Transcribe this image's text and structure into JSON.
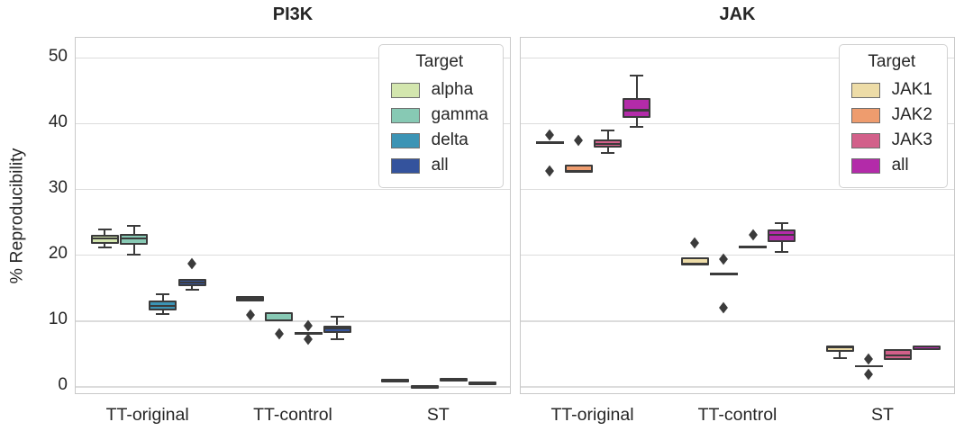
{
  "chart_data": {
    "type": "grouped_boxplot",
    "ylabel": "% Reproducibility",
    "ylim": [
      -1.3,
      53.0
    ],
    "yticks": [
      0,
      10,
      20,
      30,
      40,
      50
    ],
    "categories": [
      "TT-original",
      "TT-control",
      "ST"
    ],
    "grid": "horizontal",
    "legend_position": "upper right",
    "panels": [
      {
        "title": "PI3K",
        "legend_title": "Target",
        "series": [
          {
            "name": "alpha",
            "color": "#d3e6ae"
          },
          {
            "name": "gamma",
            "color": "#87c9b4"
          },
          {
            "name": "delta",
            "color": "#3c94b5"
          },
          {
            "name": "all",
            "color": "#34539d"
          }
        ],
        "groups": [
          {
            "category": "TT-original",
            "boxes": [
              {
                "series": "alpha",
                "whislo": 21.1,
                "q1": 21.7,
                "med": 22.5,
                "q3": 23.1,
                "whishi": 23.8,
                "outliers": []
              },
              {
                "series": "gamma",
                "whislo": 20.1,
                "q1": 21.5,
                "med": 22.5,
                "q3": 23.2,
                "whishi": 24.4,
                "outliers": []
              },
              {
                "series": "delta",
                "whislo": 11.0,
                "q1": 11.6,
                "med": 12.2,
                "q3": 13.0,
                "whishi": 14.0,
                "outliers": []
              },
              {
                "series": "all",
                "whislo": 14.7,
                "q1": 15.3,
                "med": 15.8,
                "q3": 16.4,
                "whishi": 16.4,
                "outliers": [
                  18.7
                ]
              }
            ]
          },
          {
            "category": "TT-control",
            "boxes": [
              {
                "series": "alpha",
                "whislo": 12.9,
                "q1": 12.9,
                "med": 13.35,
                "q3": 13.8,
                "whishi": 13.8,
                "outliers": [
                  10.9
                ]
              },
              {
                "series": "gamma",
                "whislo": 9.9,
                "q1": 9.9,
                "med": 10.1,
                "q3": 11.3,
                "whishi": 11.3,
                "outliers": [
                  8.0
                ]
              },
              {
                "series": "delta",
                "whislo": 8.1,
                "q1": 8.1,
                "med": 8.1,
                "q3": 8.1,
                "whishi": 8.1,
                "outliers": [
                  9.2,
                  7.2
                ]
              },
              {
                "series": "all",
                "whislo": 7.2,
                "q1": 8.1,
                "med": 8.8,
                "q3": 9.3,
                "whishi": 10.6,
                "outliers": []
              }
            ]
          },
          {
            "category": "ST",
            "boxes": [
              {
                "series": "alpha",
                "whislo": 0.6,
                "q1": 0.6,
                "med": 0.85,
                "q3": 1.1,
                "whishi": 1.1,
                "outliers": []
              },
              {
                "series": "gamma",
                "whislo": -0.25,
                "q1": -0.25,
                "med": 0.0,
                "q3": 0.25,
                "whishi": 0.25,
                "outliers": []
              },
              {
                "series": "delta",
                "whislo": 0.8,
                "q1": 0.8,
                "med": 1.05,
                "q3": 1.35,
                "whishi": 1.35,
                "outliers": []
              },
              {
                "series": "all",
                "whislo": 0.35,
                "q1": 0.35,
                "med": 0.55,
                "q3": 0.8,
                "whishi": 0.8,
                "outliers": []
              }
            ]
          }
        ]
      },
      {
        "title": "JAK",
        "legend_title": "Target",
        "series": [
          {
            "name": "JAK1",
            "color": "#eddca7"
          },
          {
            "name": "JAK2",
            "color": "#ee9c6e"
          },
          {
            "name": "JAK3",
            "color": "#d2608a"
          },
          {
            "name": "all",
            "color": "#b32ba9"
          }
        ],
        "groups": [
          {
            "category": "TT-original",
            "boxes": [
              {
                "series": "JAK1",
                "whislo": 37.1,
                "q1": 37.1,
                "med": 37.1,
                "q3": 37.1,
                "whishi": 37.1,
                "outliers": [
                  38.2,
                  32.8
                ]
              },
              {
                "series": "JAK2",
                "whislo": 32.5,
                "q1": 32.5,
                "med": 32.7,
                "q3": 33.7,
                "whishi": 33.7,
                "outliers": [
                  37.4
                ]
              },
              {
                "series": "JAK3",
                "whislo": 35.5,
                "q1": 36.3,
                "med": 36.9,
                "q3": 37.6,
                "whishi": 38.9,
                "outliers": []
              },
              {
                "series": "all",
                "whislo": 39.5,
                "q1": 40.8,
                "med": 42.0,
                "q3": 43.9,
                "whishi": 47.2,
                "outliers": []
              }
            ]
          },
          {
            "category": "TT-control",
            "boxes": [
              {
                "series": "JAK1",
                "whislo": 18.4,
                "q1": 18.4,
                "med": 18.6,
                "q3": 19.6,
                "whishi": 19.6,
                "outliers": [
                  21.8
                ]
              },
              {
                "series": "JAK2",
                "whislo": 17.1,
                "q1": 17.1,
                "med": 17.1,
                "q3": 17.1,
                "whishi": 17.1,
                "outliers": [
                  19.3,
                  11.9
                ]
              },
              {
                "series": "JAK3",
                "whislo": 21.2,
                "q1": 21.2,
                "med": 21.2,
                "q3": 21.2,
                "whishi": 21.2,
                "outliers": [
                  23.1
                ]
              },
              {
                "series": "all",
                "whislo": 20.5,
                "q1": 22.0,
                "med": 23.0,
                "q3": 23.8,
                "whishi": 24.8,
                "outliers": []
              }
            ]
          },
          {
            "category": "ST",
            "boxes": [
              {
                "series": "JAK1",
                "whislo": 4.3,
                "q1": 5.3,
                "med": 6.0,
                "q3": 6.2,
                "whishi": 6.2,
                "outliers": []
              },
              {
                "series": "JAK2",
                "whislo": 3.1,
                "q1": 3.1,
                "med": 3.1,
                "q3": 3.1,
                "whishi": 3.1,
                "outliers": [
                  4.2,
                  1.9
                ]
              },
              {
                "series": "JAK3",
                "whislo": 4.1,
                "q1": 4.1,
                "med": 4.7,
                "q3": 5.7,
                "whishi": 5.7,
                "outliers": []
              },
              {
                "series": "all",
                "whislo": 5.5,
                "q1": 5.5,
                "med": 6.1,
                "q3": 6.2,
                "whishi": 6.2,
                "outliers": []
              }
            ]
          }
        ]
      }
    ]
  },
  "styles": {
    "edge_color": "#3b3b3b",
    "grid_color": "#dcdcdc",
    "spine_color": "#c9c9c9",
    "text_color": "#262626",
    "background": "#ffffff"
  }
}
